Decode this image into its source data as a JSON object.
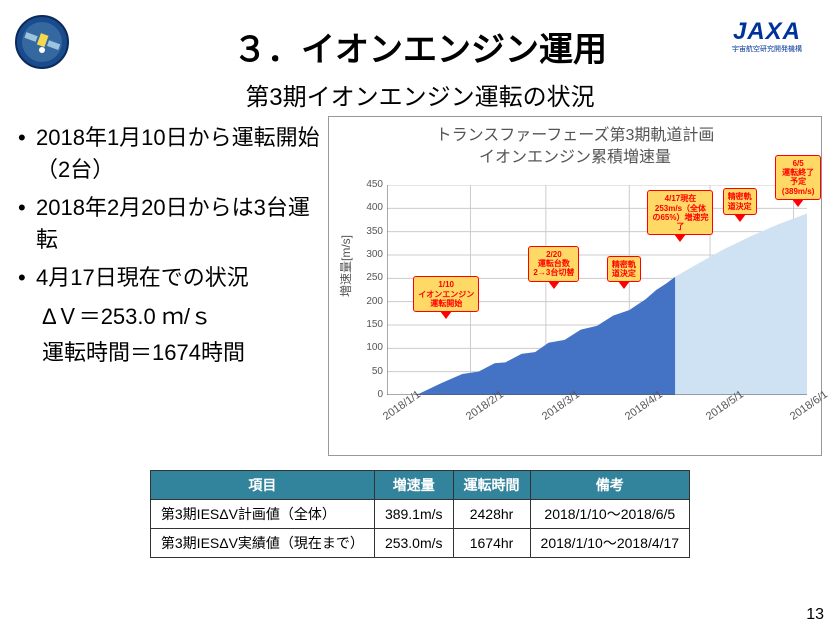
{
  "title": "３．イオンエンジン運用",
  "subtitle": "第3期イオンエンジン運転の状況",
  "jaxa": {
    "text": "JAXA",
    "sub": "宇宙航空研究開発機構"
  },
  "bullets": [
    {
      "text": "2018年1月10日から運転開始（2台）",
      "subs": []
    },
    {
      "text": "2018年2月20日からは3台運転",
      "subs": []
    },
    {
      "text": "4月17日現在での状況",
      "subs": [
        "ΔＶ＝253.0 ｍ/ｓ",
        "運転時間＝1674時間"
      ]
    }
  ],
  "chart": {
    "title_line1": "トランスファーフェーズ第3期軌道計画",
    "title_line2": "イオンエンジン累積増速量",
    "ylabel": "増速量[m/s]",
    "ylim": [
      0,
      450
    ],
    "ytick_step": 50,
    "xticks": [
      "2018/1/1",
      "2018/2/1",
      "2018/3/1",
      "2018/4/1",
      "2018/5/1",
      "2018/6/1"
    ],
    "x_days": [
      0,
      31,
      59,
      90,
      120,
      151
    ],
    "x_domain": [
      0,
      156
    ],
    "area_actual": {
      "color": "#4472c4",
      "points": [
        [
          9,
          0
        ],
        [
          12,
          3
        ],
        [
          20,
          25
        ],
        [
          28,
          45
        ],
        [
          34,
          50
        ],
        [
          40,
          68
        ],
        [
          44,
          70
        ],
        [
          50,
          88
        ],
        [
          55,
          92
        ],
        [
          60,
          112
        ],
        [
          66,
          118
        ],
        [
          72,
          140
        ],
        [
          78,
          148
        ],
        [
          84,
          170
        ],
        [
          90,
          182
        ],
        [
          96,
          205
        ],
        [
          100,
          225
        ],
        [
          104,
          240
        ],
        [
          107,
          253
        ]
      ]
    },
    "area_plan": {
      "color": "#cfe2f3",
      "points": [
        [
          107,
          253
        ],
        [
          115,
          280
        ],
        [
          125,
          312
        ],
        [
          135,
          340
        ],
        [
          145,
          365
        ],
        [
          156,
          389
        ]
      ]
    },
    "callouts": [
      {
        "x_day": 22,
        "y_val": 160,
        "lines": [
          "1/10",
          "イオンエンジン",
          "運転開始"
        ]
      },
      {
        "x_day": 62,
        "y_val": 225,
        "lines": [
          "2/20",
          "運転台数",
          "2→3台切替"
        ]
      },
      {
        "x_day": 88,
        "y_val": 225,
        "lines": [
          "精密軌",
          "道決定"
        ]
      },
      {
        "x_day": 109,
        "y_val": 325,
        "lines": [
          "4/17現在",
          "253m/s（全体",
          "の65%）増速完",
          "了"
        ]
      },
      {
        "x_day": 131,
        "y_val": 370,
        "lines": [
          "精密軌",
          "道決定"
        ]
      },
      {
        "x_day": 155,
        "y_val": 420,
        "lines": [
          "6/5",
          "運転終了予定",
          "(389m/s)"
        ]
      }
    ],
    "grid_color": "#cccccc",
    "background": "#ffffff"
  },
  "table": {
    "headers": [
      "項目",
      "増速量",
      "運転時間",
      "備考"
    ],
    "rows": [
      [
        "第3期IESΔV計画値（全体）",
        "389.1m/s",
        "2428hr",
        "2018/1/10～2018/6/5"
      ],
      [
        "第3期IESΔV実績値（現在まで）",
        "253.0m/s",
        "1674hr",
        "2018/1/10～2018/4/17"
      ]
    ],
    "header_bg": "#31849b"
  },
  "page_number": "13",
  "mission_badge_colors": {
    "bg": "#1a4b8c",
    "accent": "#f5d94c"
  }
}
